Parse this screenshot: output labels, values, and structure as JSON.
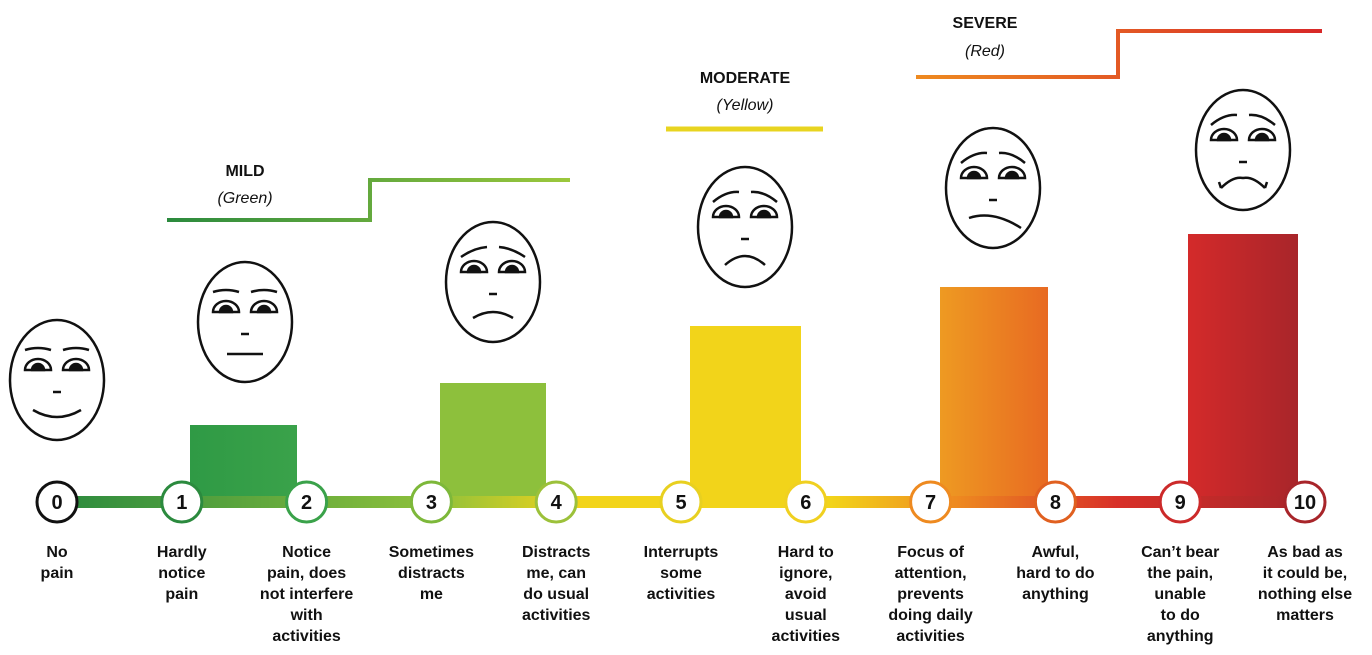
{
  "title_groups": [
    {
      "name": "MILD",
      "color_name": "(Green)"
    },
    {
      "name": "MODERATE",
      "color_name": "(Yellow)"
    },
    {
      "name": "SEVERE",
      "color_name": "(Red)"
    }
  ],
  "levels": [
    {
      "number": "0",
      "lines": [
        "No",
        "pain"
      ]
    },
    {
      "number": "1",
      "lines": [
        "Hardly",
        "notice",
        "pain"
      ]
    },
    {
      "number": "2",
      "lines": [
        "Notice",
        "pain, does",
        "not interfere",
        "with",
        "activities"
      ]
    },
    {
      "number": "3",
      "lines": [
        "Sometimes",
        "distracts",
        "me"
      ]
    },
    {
      "number": "4",
      "lines": [
        "Distracts",
        "me, can",
        "do usual",
        "activities"
      ]
    },
    {
      "number": "5",
      "lines": [
        "Interrupts",
        "some",
        "activities"
      ]
    },
    {
      "number": "6",
      "lines": [
        "Hard to",
        "ignore,",
        "avoid",
        "usual",
        "activities"
      ]
    },
    {
      "number": "7",
      "lines": [
        "Focus of",
        "attention,",
        "prevents",
        "doing daily",
        "activities"
      ]
    },
    {
      "number": "8",
      "lines": [
        "Awful,",
        "hard to do",
        "anything"
      ]
    },
    {
      "number": "9",
      "lines": [
        "Can’t bear",
        "the pain,",
        "unable",
        "to do",
        "anything"
      ]
    },
    {
      "number": "10",
      "lines": [
        "As bad as",
        "it could be,",
        "nothing else",
        "matters"
      ]
    }
  ]
}
